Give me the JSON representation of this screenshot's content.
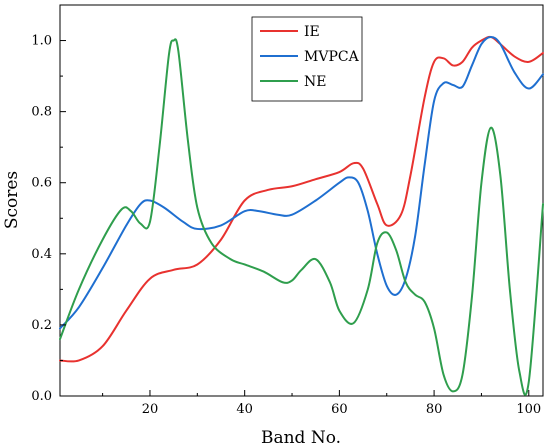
{
  "chart_data": {
    "type": "line",
    "xlabel": "Band No.",
    "ylabel": "Scores",
    "xlim": [
      1,
      103
    ],
    "ylim": [
      0.0,
      1.1
    ],
    "xticks": [
      20,
      40,
      60,
      80,
      100
    ],
    "xtick_labels": [
      "20",
      "40",
      "60",
      "80",
      "100"
    ],
    "yticks": [
      0.0,
      0.2,
      0.4,
      0.6,
      0.8,
      1.0
    ],
    "ytick_labels": [
      "0.0",
      "0.2",
      "0.4",
      "0.6",
      "0.8",
      "1.0"
    ],
    "grid": false,
    "legend_position": "top-center",
    "series": [
      {
        "name": "IE",
        "color": "#e8322f",
        "x": [
          1,
          5,
          10,
          15,
          20,
          25,
          30,
          35,
          40,
          45,
          50,
          55,
          60,
          63,
          65,
          68,
          70,
          73,
          75,
          78,
          80,
          82,
          84,
          86,
          88,
          90,
          92,
          94,
          97,
          100,
          103
        ],
        "y": [
          0.1,
          0.1,
          0.14,
          0.24,
          0.33,
          0.355,
          0.37,
          0.44,
          0.55,
          0.58,
          0.59,
          0.61,
          0.63,
          0.655,
          0.64,
          0.54,
          0.48,
          0.51,
          0.62,
          0.84,
          0.94,
          0.95,
          0.93,
          0.94,
          0.98,
          1.0,
          1.01,
          0.99,
          0.955,
          0.94,
          0.965
        ]
      },
      {
        "name": "MVPCA",
        "color": "#1f6fd0",
        "x": [
          1,
          5,
          10,
          15,
          18,
          20,
          23,
          27,
          30,
          35,
          40,
          43,
          47,
          50,
          55,
          60,
          62,
          64,
          66,
          68,
          70,
          72,
          74,
          76,
          78,
          80,
          82,
          84,
          86,
          88,
          90,
          92,
          94,
          97,
          100,
          103
        ],
        "y": [
          0.19,
          0.25,
          0.36,
          0.48,
          0.54,
          0.55,
          0.53,
          0.49,
          0.47,
          0.48,
          0.52,
          0.52,
          0.51,
          0.51,
          0.55,
          0.6,
          0.615,
          0.6,
          0.52,
          0.4,
          0.31,
          0.285,
          0.33,
          0.45,
          0.65,
          0.83,
          0.88,
          0.875,
          0.87,
          0.93,
          0.99,
          1.01,
          0.99,
          0.91,
          0.865,
          0.905
        ]
      },
      {
        "name": "NE",
        "color": "#2f9e4d",
        "x": [
          1,
          5,
          10,
          14,
          16,
          18,
          20,
          22,
          24,
          25,
          26,
          28,
          30,
          33,
          37,
          40,
          44,
          48,
          50,
          52,
          55,
          58,
          60,
          63,
          66,
          68,
          70,
          72,
          74,
          76,
          78,
          80,
          82,
          84,
          86,
          88,
          90,
          92,
          94,
          96,
          98,
          100,
          103
        ],
        "y": [
          0.16,
          0.3,
          0.44,
          0.525,
          0.52,
          0.485,
          0.49,
          0.7,
          0.96,
          1.0,
          0.97,
          0.72,
          0.53,
          0.43,
          0.385,
          0.37,
          0.35,
          0.32,
          0.325,
          0.355,
          0.385,
          0.32,
          0.24,
          0.205,
          0.3,
          0.43,
          0.46,
          0.41,
          0.32,
          0.285,
          0.265,
          0.19,
          0.06,
          0.013,
          0.06,
          0.28,
          0.6,
          0.755,
          0.62,
          0.3,
          0.07,
          0.04,
          0.54
        ]
      }
    ]
  }
}
